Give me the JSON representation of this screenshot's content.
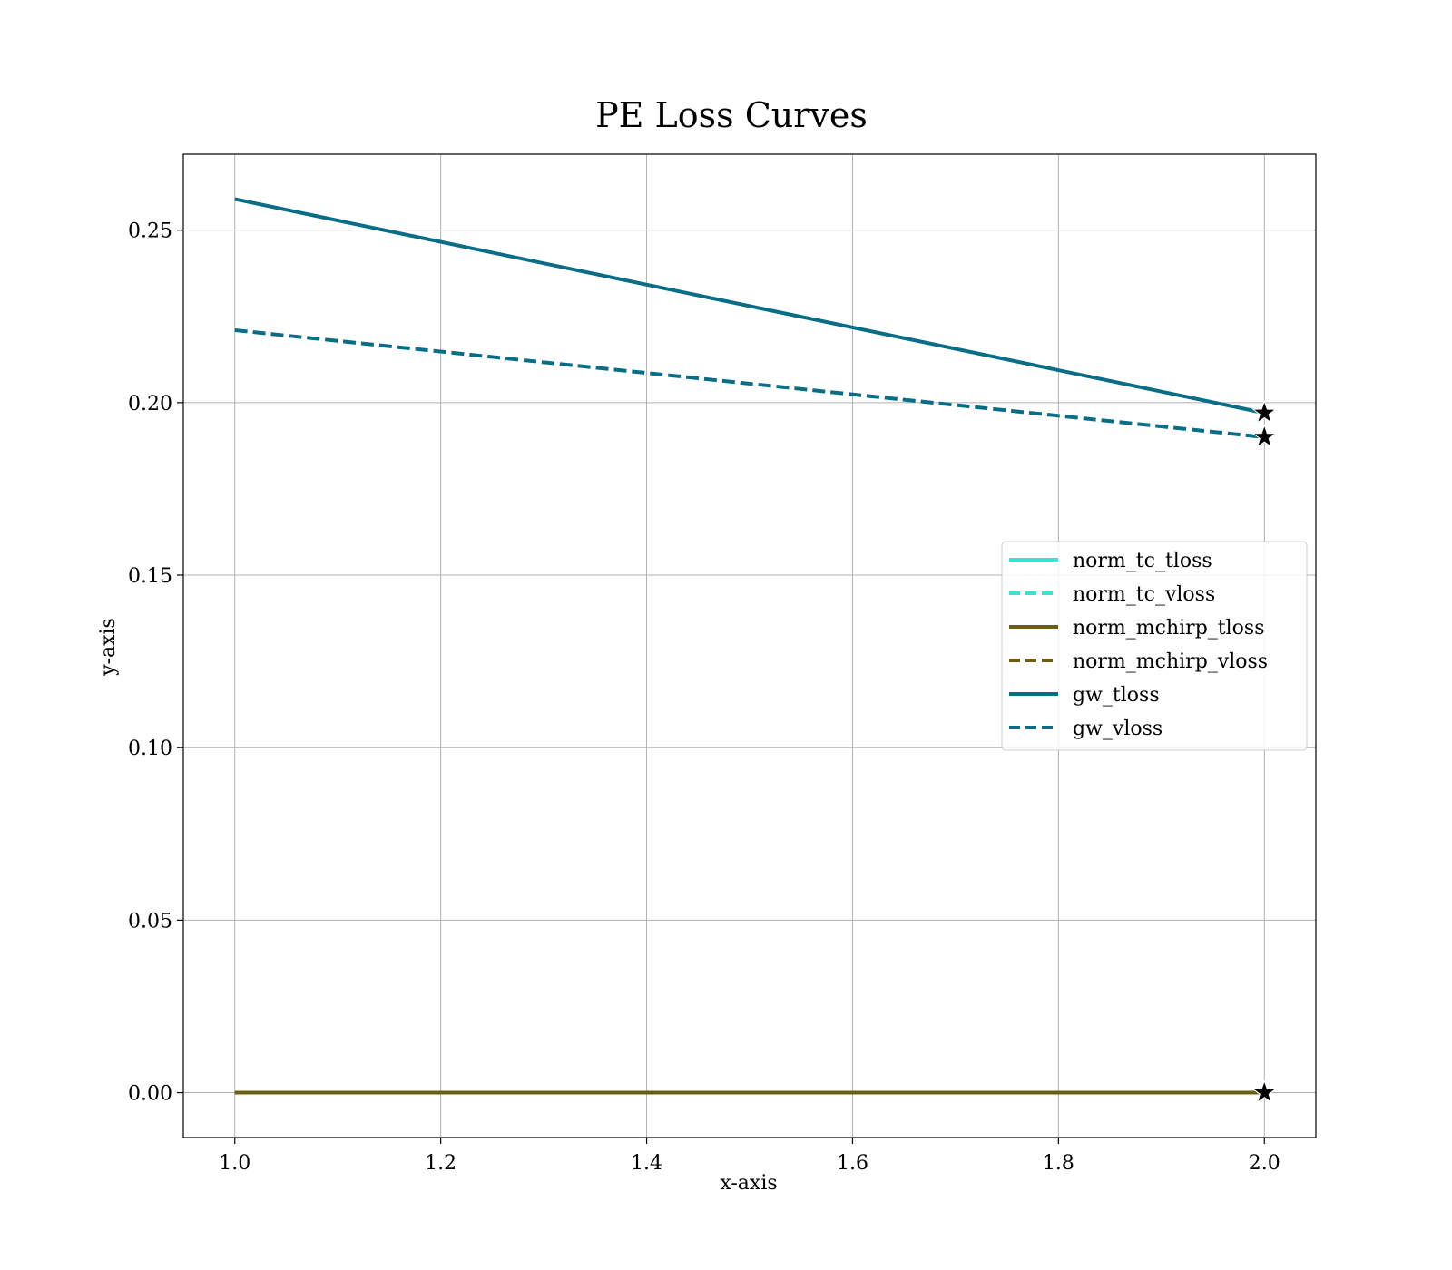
{
  "chart_data": {
    "type": "line",
    "title": "PE Loss Curves",
    "xlabel": "x-axis",
    "ylabel": "y-axis",
    "xlim": [
      0.95,
      2.05
    ],
    "ylim": [
      -0.013,
      0.272
    ],
    "xticks": [
      1.0,
      1.2,
      1.4,
      1.6,
      1.8,
      2.0
    ],
    "xtick_labels": [
      "1.0",
      "1.2",
      "1.4",
      "1.6",
      "1.8",
      "2.0"
    ],
    "yticks": [
      0.0,
      0.05,
      0.1,
      0.15,
      0.2,
      0.25
    ],
    "ytick_labels": [
      "0.00",
      "0.05",
      "0.10",
      "0.15",
      "0.20",
      "0.25"
    ],
    "grid": true,
    "legend_position": "center-right",
    "x": [
      1,
      2
    ],
    "series": [
      {
        "name": "norm_tc_tloss",
        "values": [
          0.0,
          0.0
        ],
        "color": "#40E0D0",
        "style": "solid"
      },
      {
        "name": "norm_tc_vloss",
        "values": [
          0.0,
          0.0
        ],
        "color": "#40E0D0",
        "style": "dashed"
      },
      {
        "name": "norm_mchirp_tloss",
        "values": [
          0.0,
          0.0
        ],
        "color": "#6B5E10",
        "style": "solid"
      },
      {
        "name": "norm_mchirp_vloss",
        "values": [
          0.0,
          0.0
        ],
        "color": "#6B5E10",
        "style": "dashed"
      },
      {
        "name": "gw_tloss",
        "values": [
          0.259,
          0.197
        ],
        "color": "#096D85",
        "style": "solid"
      },
      {
        "name": "gw_vloss",
        "values": [
          0.221,
          0.19
        ],
        "color": "#096D85",
        "style": "dashed"
      }
    ],
    "markers": [
      {
        "series": "norm_tc_tloss",
        "x": 2,
        "y": 0.0,
        "symbol": "star"
      },
      {
        "series": "norm_tc_vloss",
        "x": 2,
        "y": 0.0,
        "symbol": "star"
      },
      {
        "series": "norm_mchirp_tloss",
        "x": 2,
        "y": 0.0,
        "symbol": "star"
      },
      {
        "series": "norm_mchirp_vloss",
        "x": 2,
        "y": 0.0,
        "symbol": "star"
      },
      {
        "series": "gw_tloss",
        "x": 2,
        "y": 0.197,
        "symbol": "star"
      },
      {
        "series": "gw_vloss",
        "x": 2,
        "y": 0.19,
        "symbol": "star"
      }
    ]
  }
}
